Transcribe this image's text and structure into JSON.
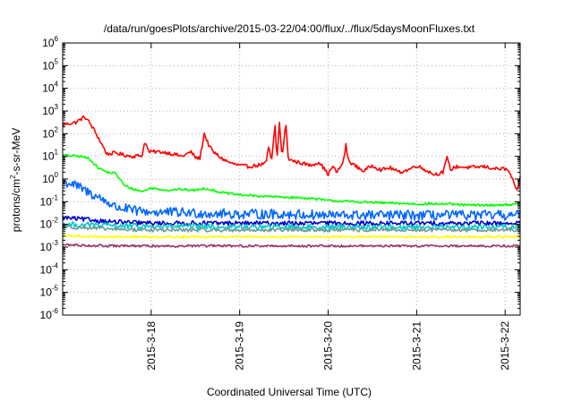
{
  "chart_data": {
    "type": "line",
    "title": "/data/run/goesPlots/archive/2015-03-22/04:00/flux/../flux/5daysMoonFluxes.txt",
    "xlabel": "Coordinated Universal Time (UTC)",
    "ylabel_parts": {
      "pre": "protons/cm",
      "sup": "2",
      "post": "-s-sr-MeV"
    },
    "y_scale": "log",
    "ylim_exp": [
      -6,
      6
    ],
    "y_ticks": [
      {
        "base": "10",
        "exp": "-6",
        "value_exp": -6
      },
      {
        "base": "10",
        "exp": "-5",
        "value_exp": -5
      },
      {
        "base": "10",
        "exp": "-4",
        "value_exp": -4
      },
      {
        "base": "10",
        "exp": "-3",
        "value_exp": -3
      },
      {
        "base": "10",
        "exp": "-2",
        "value_exp": -2
      },
      {
        "base": "10",
        "exp": "-1",
        "value_exp": -1
      },
      {
        "base": "10",
        "exp": "0",
        "value_exp": 0
      },
      {
        "base": "10",
        "exp": "1",
        "value_exp": 1
      },
      {
        "base": "10",
        "exp": "2",
        "value_exp": 2
      },
      {
        "base": "10",
        "exp": "3",
        "value_exp": 3
      },
      {
        "base": "10",
        "exp": "4",
        "value_exp": 4
      },
      {
        "base": "10",
        "exp": "5",
        "value_exp": 5
      },
      {
        "base": "10",
        "exp": "6",
        "value_exp": 6
      }
    ],
    "x_range_days": [
      17.0,
      22.17
    ],
    "x_ticks": [
      {
        "label": "2015-3-18",
        "day": 18
      },
      {
        "label": "2015-3-19",
        "day": 19
      },
      {
        "label": "2015-3-20",
        "day": 20
      },
      {
        "label": "2015-3-21",
        "day": 21
      },
      {
        "label": "2015-3-22",
        "day": 22
      }
    ],
    "grid": true,
    "series": [
      {
        "color": "#ff0000",
        "noise": 0.08,
        "points": [
          [
            17.0,
            2.4
          ],
          [
            17.15,
            2.5
          ],
          [
            17.25,
            2.75
          ],
          [
            17.3,
            2.5
          ],
          [
            17.35,
            2.2
          ],
          [
            17.42,
            1.7
          ],
          [
            17.5,
            1.1
          ],
          [
            17.6,
            1.15
          ],
          [
            17.7,
            1.05
          ],
          [
            17.8,
            1.0
          ],
          [
            17.9,
            1.05
          ],
          [
            17.93,
            1.7
          ],
          [
            17.97,
            1.2
          ],
          [
            18.1,
            1.2
          ],
          [
            18.2,
            1.15
          ],
          [
            18.35,
            1.0
          ],
          [
            18.45,
            1.2
          ],
          [
            18.5,
            0.95
          ],
          [
            18.55,
            0.9
          ],
          [
            18.6,
            2.0
          ],
          [
            18.65,
            1.5
          ],
          [
            18.7,
            1.2
          ],
          [
            18.8,
            0.9
          ],
          [
            18.9,
            0.7
          ],
          [
            19.0,
            0.6
          ],
          [
            19.1,
            0.55
          ],
          [
            19.2,
            0.6
          ],
          [
            19.3,
            0.7
          ],
          [
            19.33,
            1.5
          ],
          [
            19.36,
            0.7
          ],
          [
            19.4,
            2.4
          ],
          [
            19.42,
            0.8
          ],
          [
            19.45,
            2.5
          ],
          [
            19.48,
            0.9
          ],
          [
            19.52,
            2.5
          ],
          [
            19.55,
            0.9
          ],
          [
            19.6,
            0.8
          ],
          [
            19.7,
            0.7
          ],
          [
            19.8,
            0.6
          ],
          [
            19.9,
            0.75
          ],
          [
            20.0,
            0.2
          ],
          [
            20.05,
            0.55
          ],
          [
            20.1,
            0.3
          ],
          [
            20.15,
            0.6
          ],
          [
            20.18,
            0.9
          ],
          [
            20.2,
            1.5
          ],
          [
            20.23,
            0.8
          ],
          [
            20.3,
            0.6
          ],
          [
            20.4,
            0.35
          ],
          [
            20.5,
            0.6
          ],
          [
            20.6,
            0.4
          ],
          [
            20.7,
            0.5
          ],
          [
            20.8,
            0.3
          ],
          [
            20.9,
            0.4
          ],
          [
            21.0,
            0.6
          ],
          [
            21.1,
            0.4
          ],
          [
            21.2,
            0.2
          ],
          [
            21.3,
            0.3
          ],
          [
            21.35,
            1.0
          ],
          [
            21.38,
            0.4
          ],
          [
            21.45,
            0.55
          ],
          [
            21.6,
            0.5
          ],
          [
            21.75,
            0.55
          ],
          [
            21.9,
            0.45
          ],
          [
            22.0,
            0.45
          ],
          [
            22.05,
            0.3
          ],
          [
            22.1,
            -0.2
          ],
          [
            22.13,
            -0.6
          ],
          [
            22.17,
            0.05
          ]
        ]
      },
      {
        "color": "#00ff00",
        "noise": 0.05,
        "points": [
          [
            17.0,
            1.05
          ],
          [
            17.2,
            1.0
          ],
          [
            17.3,
            0.9
          ],
          [
            17.4,
            0.5
          ],
          [
            17.5,
            0.3
          ],
          [
            17.6,
            0.25
          ],
          [
            17.7,
            -0.3
          ],
          [
            17.8,
            -0.45
          ],
          [
            17.9,
            -0.55
          ],
          [
            18.0,
            -0.4
          ],
          [
            18.1,
            -0.45
          ],
          [
            18.2,
            -0.5
          ],
          [
            18.3,
            -0.45
          ],
          [
            18.5,
            -0.5
          ],
          [
            18.6,
            -0.4
          ],
          [
            18.8,
            -0.6
          ],
          [
            19.0,
            -0.7
          ],
          [
            19.2,
            -0.75
          ],
          [
            19.5,
            -0.8
          ],
          [
            19.8,
            -0.85
          ],
          [
            20.0,
            -0.95
          ],
          [
            20.3,
            -1.0
          ],
          [
            20.6,
            -1.05
          ],
          [
            21.0,
            -1.1
          ],
          [
            21.3,
            -1.1
          ],
          [
            21.6,
            -1.15
          ],
          [
            21.9,
            -1.15
          ],
          [
            22.17,
            -1.1
          ]
        ]
      },
      {
        "color": "#0066ff",
        "noise": 0.22,
        "points": [
          [
            17.0,
            -0.15
          ],
          [
            17.1,
            -0.2
          ],
          [
            17.2,
            -0.4
          ],
          [
            17.3,
            -0.6
          ],
          [
            17.4,
            -0.8
          ],
          [
            17.5,
            -1.0
          ],
          [
            17.6,
            -1.25
          ],
          [
            17.7,
            -1.3
          ],
          [
            17.8,
            -1.4
          ],
          [
            18.0,
            -1.45
          ],
          [
            18.5,
            -1.5
          ],
          [
            19.0,
            -1.55
          ],
          [
            19.5,
            -1.55
          ],
          [
            20.0,
            -1.6
          ],
          [
            20.5,
            -1.6
          ],
          [
            21.0,
            -1.6
          ],
          [
            21.5,
            -1.6
          ],
          [
            22.17,
            -1.6
          ]
        ]
      },
      {
        "color": "#0000cc",
        "noise": 0.1,
        "points": [
          [
            17.0,
            -1.7
          ],
          [
            17.3,
            -1.8
          ],
          [
            17.6,
            -1.9
          ],
          [
            18.0,
            -1.95
          ],
          [
            18.5,
            -1.95
          ],
          [
            19.0,
            -1.95
          ],
          [
            19.5,
            -1.95
          ],
          [
            20.0,
            -1.95
          ],
          [
            20.5,
            -1.95
          ],
          [
            21.0,
            -1.95
          ],
          [
            21.5,
            -1.95
          ],
          [
            22.17,
            -1.95
          ]
        ]
      },
      {
        "color": "#00c8c8",
        "noise": 0.12,
        "points": [
          [
            17.0,
            -2.0
          ],
          [
            17.5,
            -2.05
          ],
          [
            18.0,
            -2.1
          ],
          [
            18.5,
            -2.1
          ],
          [
            19.0,
            -2.12
          ],
          [
            19.5,
            -2.12
          ],
          [
            20.0,
            -2.12
          ],
          [
            20.5,
            -2.12
          ],
          [
            21.0,
            -2.12
          ],
          [
            21.5,
            -2.12
          ],
          [
            22.17,
            -2.1
          ]
        ]
      },
      {
        "color": "#6a9a9a",
        "noise": 0.08,
        "points": [
          [
            17.0,
            -2.1
          ],
          [
            17.5,
            -2.2
          ],
          [
            18.0,
            -2.25
          ],
          [
            18.5,
            -2.25
          ],
          [
            19.0,
            -2.25
          ],
          [
            19.5,
            -2.25
          ],
          [
            20.0,
            -2.25
          ],
          [
            20.5,
            -2.25
          ],
          [
            21.0,
            -2.25
          ],
          [
            21.5,
            -2.25
          ],
          [
            22.17,
            -2.25
          ]
        ]
      },
      {
        "color": "#ffff00",
        "noise": 0.05,
        "points": [
          [
            17.0,
            -2.5
          ],
          [
            17.5,
            -2.55
          ],
          [
            18.0,
            -2.55
          ],
          [
            18.5,
            -2.55
          ],
          [
            19.0,
            -2.55
          ],
          [
            19.5,
            -2.55
          ],
          [
            20.0,
            -2.55
          ],
          [
            20.5,
            -2.55
          ],
          [
            21.0,
            -2.55
          ],
          [
            21.5,
            -2.55
          ],
          [
            22.17,
            -2.55
          ]
        ]
      },
      {
        "color": "#993366",
        "noise": 0.05,
        "points": [
          [
            17.0,
            -2.9
          ],
          [
            17.5,
            -2.95
          ],
          [
            18.0,
            -2.95
          ],
          [
            18.5,
            -2.95
          ],
          [
            19.0,
            -2.95
          ],
          [
            19.5,
            -2.95
          ],
          [
            20.0,
            -2.95
          ],
          [
            20.5,
            -2.95
          ],
          [
            21.0,
            -2.95
          ],
          [
            21.5,
            -2.95
          ],
          [
            22.17,
            -2.95
          ]
        ]
      }
    ]
  }
}
